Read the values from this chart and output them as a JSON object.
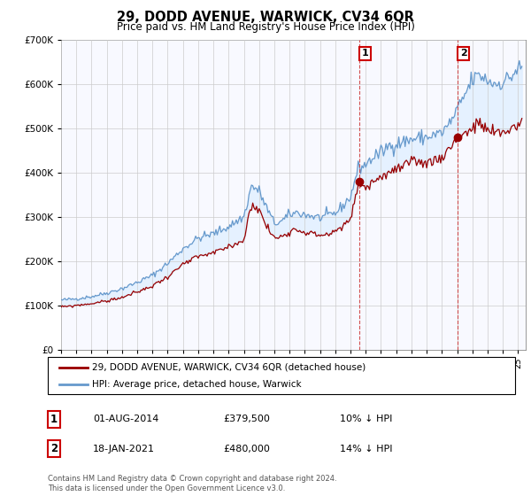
{
  "title": "29, DODD AVENUE, WARWICK, CV34 6QR",
  "subtitle": "Price paid vs. HM Land Registry's House Price Index (HPI)",
  "legend_line1": "29, DODD AVENUE, WARWICK, CV34 6QR (detached house)",
  "legend_line2": "HPI: Average price, detached house, Warwick",
  "footnote": "Contains HM Land Registry data © Crown copyright and database right 2024.\nThis data is licensed under the Open Government Licence v3.0.",
  "annotation1": {
    "label": "1",
    "date": "01-AUG-2014",
    "price": "£379,500",
    "pct": "10% ↓ HPI",
    "x_year": 2014.583,
    "price_val": 379500
  },
  "annotation2": {
    "label": "2",
    "date": "18-JAN-2021",
    "price": "£480,000",
    "pct": "14% ↓ HPI",
    "x_year": 2021.042,
    "price_val": 480000
  },
  "hpi_color": "#6699cc",
  "price_color": "#990000",
  "shade_color": "#ddeeff",
  "background_color": "#ffffff",
  "chart_bg": "#f8f9ff",
  "ylim": [
    0,
    700000
  ],
  "xlim_start": 1995.0,
  "xlim_end": 2025.5
}
